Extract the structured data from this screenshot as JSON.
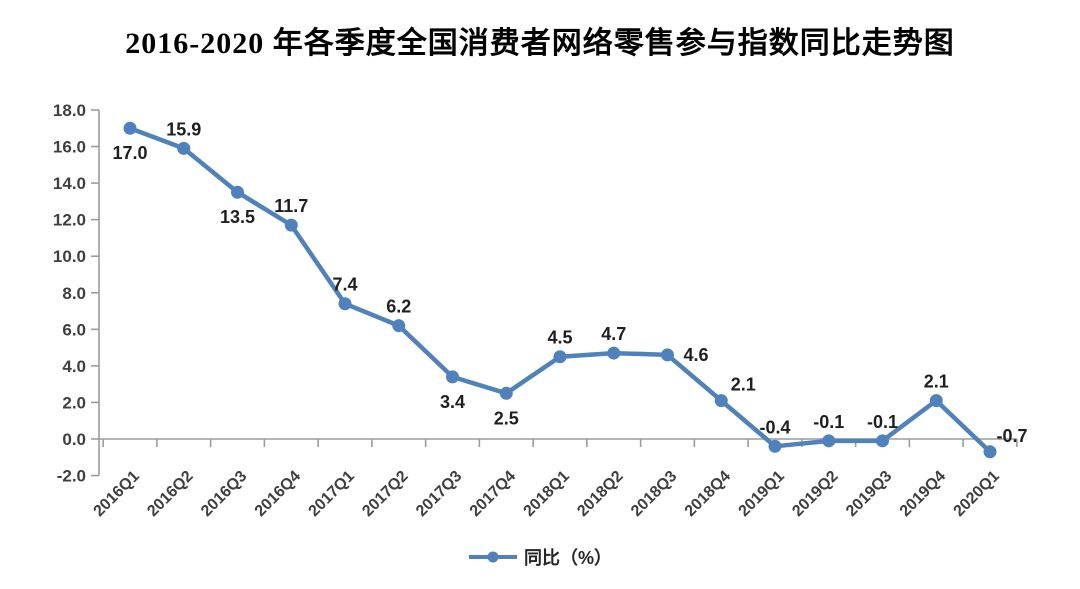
{
  "title": "2016-2020 年各季度全国消费者网络零售参与指数同比走势图",
  "legend": {
    "label": "同比（%）"
  },
  "chart_data": {
    "type": "line",
    "title": "2016-2020 年各季度全国消费者网络零售参与指数同比走势图",
    "categories": [
      "2016Q1",
      "2016Q2",
      "2016Q3",
      "2016Q4",
      "2017Q1",
      "2017Q2",
      "2017Q3",
      "2017Q4",
      "2018Q1",
      "2018Q2",
      "2018Q3",
      "2018Q4",
      "2019Q1",
      "2019Q2",
      "2019Q3",
      "2019Q4",
      "2020Q1"
    ],
    "series": [
      {
        "name": "同比（%）",
        "values": [
          17.0,
          15.9,
          13.5,
          11.7,
          7.4,
          6.2,
          3.4,
          2.5,
          4.5,
          4.7,
          4.6,
          2.1,
          -0.4,
          -0.1,
          -0.1,
          2.1,
          -0.7
        ]
      }
    ],
    "data_label_texts": [
      "17.0",
      "15.9",
      "13.5",
      "11.7",
      "7.4",
      "6.2",
      "3.4",
      "2.5",
      "4.5",
      "4.7",
      "4.6",
      "2.1",
      "-0.4",
      "-0.1",
      "-0.1",
      "2.1",
      "-0.7"
    ],
    "label_positions": [
      "below",
      "above",
      "below",
      "above",
      "above",
      "above",
      "below",
      "below",
      "above",
      "above",
      "right",
      "above-right",
      "above",
      "above",
      "above",
      "above",
      "above-right"
    ],
    "xlabel": "",
    "ylabel": "",
    "ylim": [
      -2.0,
      18.0
    ],
    "ytick_step": 2.0,
    "ytick_decimals": 1,
    "grid": "off",
    "data_labels": "on",
    "legend_position": "bottom",
    "x_label_rotation_deg": -45,
    "colors": {
      "line": "#4F81BD",
      "marker": "#4F81BD",
      "axis": "#9C9C9C",
      "tick_label": "#3F3F3F",
      "data_label": "#1F1F1F",
      "background": "#FFFFFF"
    }
  }
}
